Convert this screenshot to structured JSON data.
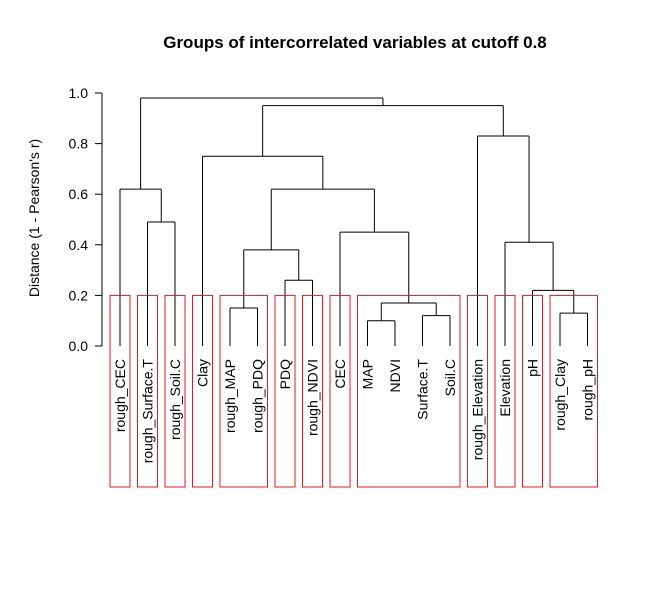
{
  "chart_data": {
    "type": "dendrogram",
    "title": "Groups of intercorrelated variables at cutoff 0.8",
    "ylabel": "Distance (1 - Pearson's r)",
    "ylim": [
      0,
      1
    ],
    "yticks": [
      "0.0",
      "0.2",
      "0.4",
      "0.6",
      "0.8",
      "1.0"
    ],
    "cutoff_box_height": 0.2,
    "leaves": [
      "rough_CEC",
      "rough_Surface.T",
      "rough_Soil.C",
      "Clay",
      "rough_MAP",
      "rough_PDQ",
      "PDQ",
      "rough_NDVI",
      "CEC",
      "MAP",
      "NDVI",
      "Surface.T",
      "Soil.C",
      "rough_Elevation",
      "Elevation",
      "pH",
      "rough_Clay",
      "rough_pH"
    ],
    "merges": [
      {
        "left": "MAP",
        "right": "NDVI",
        "height": 0.1
      },
      {
        "left": "Surface.T",
        "right": "Soil.C",
        "height": 0.12
      },
      {
        "left": 0,
        "right": 1,
        "height": 0.17
      },
      {
        "left": "rough_Clay",
        "right": "rough_pH",
        "height": 0.13
      },
      {
        "left": "pH",
        "right": 3,
        "height": 0.22
      },
      {
        "left": "rough_MAP",
        "right": "rough_PDQ",
        "height": 0.15
      },
      {
        "left": "PDQ",
        "right": "rough_NDVI",
        "height": 0.26
      },
      {
        "left": 5,
        "right": 6,
        "height": 0.38
      },
      {
        "left": "CEC",
        "right": 2,
        "height": 0.45
      },
      {
        "left": 7,
        "right": 8,
        "height": 0.62
      },
      {
        "left": "Clay",
        "right": 9,
        "height": 0.75
      },
      {
        "left": "rough_Soil.C",
        "right": "rough_Surface.T",
        "height": 0.49,
        "order": [
          "rough_Surface.T",
          "rough_Soil.C"
        ]
      },
      {
        "left": "rough_CEC",
        "right": 11,
        "height": 0.62
      },
      {
        "left": "Elevation",
        "right": 4,
        "height": 0.41
      },
      {
        "left": "rough_Elevation",
        "right": 13,
        "height": 0.83
      },
      {
        "left": 10,
        "right": 14,
        "height": 0.95
      },
      {
        "left": 12,
        "right": 15,
        "height": 0.98
      }
    ],
    "groups": [
      [
        "rough_CEC"
      ],
      [
        "rough_Surface.T"
      ],
      [
        "rough_Soil.C"
      ],
      [
        "Clay"
      ],
      [
        "rough_MAP",
        "rough_PDQ"
      ],
      [
        "PDQ"
      ],
      [
        "rough_NDVI"
      ],
      [
        "CEC"
      ],
      [
        "MAP",
        "NDVI",
        "Surface.T",
        "Soil.C"
      ],
      [
        "rough_Elevation"
      ],
      [
        "Elevation"
      ],
      [
        "pH"
      ],
      [
        "rough_Clay",
        "rough_pH"
      ]
    ],
    "colors": {
      "tree": "#000000",
      "group_box": "#e41a1c",
      "axis": "#000000"
    }
  }
}
